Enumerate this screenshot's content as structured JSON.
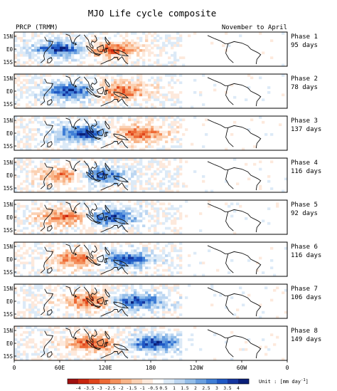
{
  "chart_data": {
    "type": "heatmap",
    "title": "MJO Life cycle composite",
    "dataset_label": "PRCP (TRMM)",
    "season_label": "November to April",
    "y_ticks": [
      "15N",
      "E0",
      "15S"
    ],
    "x_ticks": [
      "0",
      "60E",
      "120E",
      "180",
      "120W",
      "60W",
      "0"
    ],
    "panels": [
      {
        "phase": "Phase 1",
        "days": "95 days",
        "wet_center_lon": 60,
        "dry_center_lon": 130
      },
      {
        "phase": "Phase 2",
        "days": "78 days",
        "wet_center_lon": 75,
        "dry_center_lon": 140
      },
      {
        "phase": "Phase 3",
        "days": "137 days",
        "wet_center_lon": 90,
        "dry_center_lon": 165
      },
      {
        "phase": "Phase 4",
        "days": "116 days",
        "wet_center_lon": 110,
        "dry_center_lon": 70
      },
      {
        "phase": "Phase 5",
        "days": "92 days",
        "wet_center_lon": 125,
        "dry_center_lon": 70
      },
      {
        "phase": "Phase 6",
        "days": "116 days",
        "wet_center_lon": 145,
        "dry_center_lon": 85
      },
      {
        "phase": "Phase 7",
        "days": "106 days",
        "wet_center_lon": 160,
        "dry_center_lon": 100
      },
      {
        "phase": "Phase 8",
        "days": "149 days",
        "wet_center_lon": 185,
        "dry_center_lon": 105
      }
    ],
    "colorbar": {
      "tick_labels": [
        "-4",
        "-3.5",
        "-3",
        "-2.5",
        "-2",
        "-1.5",
        "-1",
        "-0.5",
        "0.5",
        "1",
        "1.5",
        "2",
        "2.5",
        "3",
        "3.5",
        "4"
      ],
      "colors": [
        "#a01010",
        "#c8250e",
        "#e0451c",
        "#ee6a36",
        "#f4905c",
        "#f8b488",
        "#fbd1b3",
        "#fde9dc",
        "#ffffff",
        "#dceaf7",
        "#bcd6f1",
        "#94bee9",
        "#6aa0e0",
        "#3f7ed6",
        "#1f58c4",
        "#1536a0",
        "#0a1f78"
      ],
      "unit_label": "Unit : [mm day",
      "unit_exponent": "-1",
      "unit_close": "]"
    }
  }
}
